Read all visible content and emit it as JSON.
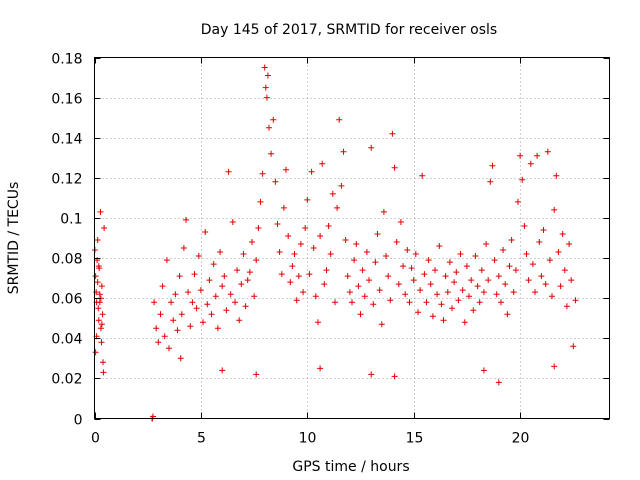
{
  "chart_data": {
    "type": "scatter",
    "title": "Day 145 of 2017, SRMTID for receiver osls",
    "xlabel": "GPS time / hours",
    "ylabel": "SRMTID / TECUs",
    "xlim": [
      0,
      24.2
    ],
    "ylim": [
      0,
      0.18
    ],
    "xticks": [
      0,
      5,
      10,
      15,
      20
    ],
    "yticks": [
      0,
      0.02,
      0.04,
      0.06,
      0.08,
      0.1,
      0.12,
      0.14,
      0.16,
      0.18
    ],
    "xtick_labels": [
      "0",
      "5",
      "10",
      "15",
      "20"
    ],
    "ytick_labels": [
      "0",
      "0.02",
      "0.04",
      "0.06",
      "0.08",
      "0.1",
      "0.12",
      "0.14",
      "0.16",
      "0.18"
    ],
    "grid": true,
    "marker": "plus",
    "color": "#e00000",
    "series": [
      {
        "points": [
          [
            0.02,
            0.084
          ],
          [
            0.05,
            0.071
          ],
          [
            0.08,
            0.063
          ],
          [
            0.1,
            0.058
          ],
          [
            0.12,
            0.079
          ],
          [
            0.15,
            0.068
          ],
          [
            0.18,
            0.055
          ],
          [
            0.2,
            0.049
          ],
          [
            0.22,
            0.075
          ],
          [
            0.25,
            0.062
          ],
          [
            0.28,
            0.103
          ],
          [
            0.3,
            0.045
          ],
          [
            0.33,
            0.038
          ],
          [
            0.35,
            0.066
          ],
          [
            0.38,
            0.052
          ],
          [
            0.4,
            0.028
          ],
          [
            0.42,
            0.023
          ],
          [
            0.45,
            0.095
          ],
          [
            0.05,
            0.033
          ],
          [
            0.1,
            0.041
          ],
          [
            0.15,
            0.089
          ],
          [
            0.2,
            0.076
          ],
          [
            0.25,
            0.058
          ],
          [
            0.3,
            0.06
          ],
          [
            0.35,
            0.047
          ],
          [
            2.7,
            0.0
          ],
          [
            2.72,
            0.0
          ],
          [
            2.75,
            0.001
          ],
          [
            2.8,
            0.058
          ],
          [
            2.9,
            0.045
          ],
          [
            3.0,
            0.038
          ],
          [
            3.1,
            0.052
          ],
          [
            3.2,
            0.066
          ],
          [
            3.3,
            0.041
          ],
          [
            3.4,
            0.079
          ],
          [
            3.5,
            0.035
          ],
          [
            3.6,
            0.058
          ],
          [
            3.7,
            0.049
          ],
          [
            3.8,
            0.062
          ],
          [
            3.9,
            0.044
          ],
          [
            4.0,
            0.071
          ],
          [
            4.1,
            0.052
          ],
          [
            4.2,
            0.085
          ],
          [
            4.3,
            0.099
          ],
          [
            4.4,
            0.063
          ],
          [
            4.5,
            0.046
          ],
          [
            4.6,
            0.058
          ],
          [
            4.7,
            0.072
          ],
          [
            4.8,
            0.055
          ],
          [
            4.9,
            0.081
          ],
          [
            5.0,
            0.064
          ],
          [
            5.1,
            0.048
          ],
          [
            5.2,
            0.093
          ],
          [
            5.3,
            0.057
          ],
          [
            5.4,
            0.069
          ],
          [
            5.5,
            0.052
          ],
          [
            5.6,
            0.077
          ],
          [
            5.7,
            0.061
          ],
          [
            5.8,
            0.045
          ],
          [
            5.9,
            0.083
          ],
          [
            6.0,
            0.066
          ],
          [
            6.1,
            0.071
          ],
          [
            6.2,
            0.054
          ],
          [
            6.3,
            0.123
          ],
          [
            6.4,
            0.062
          ],
          [
            6.5,
            0.098
          ],
          [
            6.6,
            0.058
          ],
          [
            6.7,
            0.074
          ],
          [
            6.8,
            0.049
          ],
          [
            6.9,
            0.067
          ],
          [
            7.0,
            0.082
          ],
          [
            7.1,
            0.056
          ],
          [
            7.2,
            0.069
          ],
          [
            7.3,
            0.073
          ],
          [
            7.4,
            0.088
          ],
          [
            7.5,
            0.061
          ],
          [
            7.6,
            0.079
          ],
          [
            7.7,
            0.095
          ],
          [
            7.8,
            0.108
          ],
          [
            7.9,
            0.122
          ],
          [
            8.0,
            0.175
          ],
          [
            8.05,
            0.165
          ],
          [
            8.1,
            0.16
          ],
          [
            8.15,
            0.171
          ],
          [
            8.2,
            0.145
          ],
          [
            8.3,
            0.132
          ],
          [
            8.4,
            0.149
          ],
          [
            8.5,
            0.118
          ],
          [
            8.6,
            0.097
          ],
          [
            8.7,
            0.083
          ],
          [
            8.8,
            0.072
          ],
          [
            8.9,
            0.105
          ],
          [
            9.0,
            0.124
          ],
          [
            9.1,
            0.091
          ],
          [
            9.2,
            0.068
          ],
          [
            9.3,
            0.076
          ],
          [
            9.4,
            0.082
          ],
          [
            9.5,
            0.059
          ],
          [
            9.6,
            0.071
          ],
          [
            9.7,
            0.087
          ],
          [
            9.8,
            0.063
          ],
          [
            9.9,
            0.095
          ],
          [
            10.0,
            0.109
          ],
          [
            10.1,
            0.072
          ],
          [
            10.2,
            0.123
          ],
          [
            10.3,
            0.085
          ],
          [
            10.4,
            0.061
          ],
          [
            10.5,
            0.048
          ],
          [
            10.6,
            0.091
          ],
          [
            10.7,
            0.127
          ],
          [
            10.8,
            0.067
          ],
          [
            10.9,
            0.074
          ],
          [
            11.0,
            0.096
          ],
          [
            11.1,
            0.082
          ],
          [
            11.2,
            0.112
          ],
          [
            11.3,
            0.058
          ],
          [
            11.4,
            0.105
          ],
          [
            11.5,
            0.149
          ],
          [
            11.6,
            0.116
          ],
          [
            11.7,
            0.133
          ],
          [
            11.8,
            0.089
          ],
          [
            11.9,
            0.071
          ],
          [
            12.0,
            0.063
          ],
          [
            12.1,
            0.058
          ],
          [
            12.2,
            0.079
          ],
          [
            12.3,
            0.087
          ],
          [
            12.4,
            0.066
          ],
          [
            12.5,
            0.052
          ],
          [
            12.6,
            0.074
          ],
          [
            12.7,
            0.061
          ],
          [
            12.8,
            0.083
          ],
          [
            12.9,
            0.069
          ],
          [
            13.0,
            0.135
          ],
          [
            13.1,
            0.057
          ],
          [
            13.2,
            0.078
          ],
          [
            13.3,
            0.092
          ],
          [
            13.4,
            0.064
          ],
          [
            13.5,
            0.047
          ],
          [
            13.6,
            0.103
          ],
          [
            13.7,
            0.081
          ],
          [
            13.8,
            0.071
          ],
          [
            13.9,
            0.059
          ],
          [
            14.0,
            0.142
          ],
          [
            14.1,
            0.125
          ],
          [
            14.2,
            0.088
          ],
          [
            14.3,
            0.067
          ],
          [
            14.4,
            0.098
          ],
          [
            14.5,
            0.076
          ],
          [
            14.6,
            0.062
          ],
          [
            14.7,
            0.084
          ],
          [
            14.8,
            0.058
          ],
          [
            14.9,
            0.075
          ],
          [
            15.0,
            0.069
          ],
          [
            15.1,
            0.082
          ],
          [
            15.2,
            0.053
          ],
          [
            15.3,
            0.064
          ],
          [
            15.4,
            0.121
          ],
          [
            15.5,
            0.072
          ],
          [
            15.6,
            0.058
          ],
          [
            15.7,
            0.079
          ],
          [
            15.8,
            0.067
          ],
          [
            15.9,
            0.051
          ],
          [
            16.0,
            0.074
          ],
          [
            16.1,
            0.062
          ],
          [
            16.2,
            0.086
          ],
          [
            16.3,
            0.057
          ],
          [
            16.4,
            0.049
          ],
          [
            16.5,
            0.071
          ],
          [
            16.6,
            0.063
          ],
          [
            16.7,
            0.078
          ],
          [
            16.8,
            0.055
          ],
          [
            16.9,
            0.068
          ],
          [
            17.0,
            0.073
          ],
          [
            17.1,
            0.059
          ],
          [
            17.2,
            0.082
          ],
          [
            17.3,
            0.064
          ],
          [
            17.4,
            0.048
          ],
          [
            17.5,
            0.076
          ],
          [
            17.6,
            0.061
          ],
          [
            17.7,
            0.069
          ],
          [
            17.8,
            0.054
          ],
          [
            17.9,
            0.081
          ],
          [
            18.0,
            0.066
          ],
          [
            18.1,
            0.058
          ],
          [
            18.2,
            0.074
          ],
          [
            18.3,
            0.063
          ],
          [
            18.4,
            0.087
          ],
          [
            18.5,
            0.069
          ],
          [
            18.6,
            0.118
          ],
          [
            18.7,
            0.126
          ],
          [
            18.8,
            0.079
          ],
          [
            18.9,
            0.062
          ],
          [
            19.0,
            0.071
          ],
          [
            19.1,
            0.058
          ],
          [
            19.2,
            0.084
          ],
          [
            19.3,
            0.067
          ],
          [
            19.4,
            0.052
          ],
          [
            19.5,
            0.076
          ],
          [
            19.6,
            0.089
          ],
          [
            19.7,
            0.063
          ],
          [
            19.8,
            0.074
          ],
          [
            19.9,
            0.108
          ],
          [
            20.0,
            0.131
          ],
          [
            20.1,
            0.119
          ],
          [
            20.2,
            0.096
          ],
          [
            20.3,
            0.082
          ],
          [
            20.4,
            0.069
          ],
          [
            20.5,
            0.127
          ],
          [
            20.6,
            0.077
          ],
          [
            20.7,
            0.063
          ],
          [
            20.8,
            0.131
          ],
          [
            20.9,
            0.088
          ],
          [
            21.0,
            0.071
          ],
          [
            21.1,
            0.094
          ],
          [
            21.2,
            0.067
          ],
          [
            21.3,
            0.133
          ],
          [
            21.4,
            0.079
          ],
          [
            21.5,
            0.061
          ],
          [
            21.6,
            0.104
          ],
          [
            21.7,
            0.121
          ],
          [
            21.8,
            0.083
          ],
          [
            21.9,
            0.066
          ],
          [
            22.0,
            0.092
          ],
          [
            22.1,
            0.074
          ],
          [
            22.2,
            0.056
          ],
          [
            22.3,
            0.087
          ],
          [
            22.4,
            0.069
          ],
          [
            22.5,
            0.036
          ],
          [
            22.6,
            0.059
          ],
          [
            4.05,
            0.03
          ],
          [
            6.0,
            0.024
          ],
          [
            7.6,
            0.022
          ],
          [
            10.6,
            0.025
          ],
          [
            13.0,
            0.022
          ],
          [
            14.1,
            0.021
          ],
          [
            18.3,
            0.024
          ],
          [
            19.0,
            0.018
          ],
          [
            21.6,
            0.026
          ]
        ]
      }
    ]
  }
}
